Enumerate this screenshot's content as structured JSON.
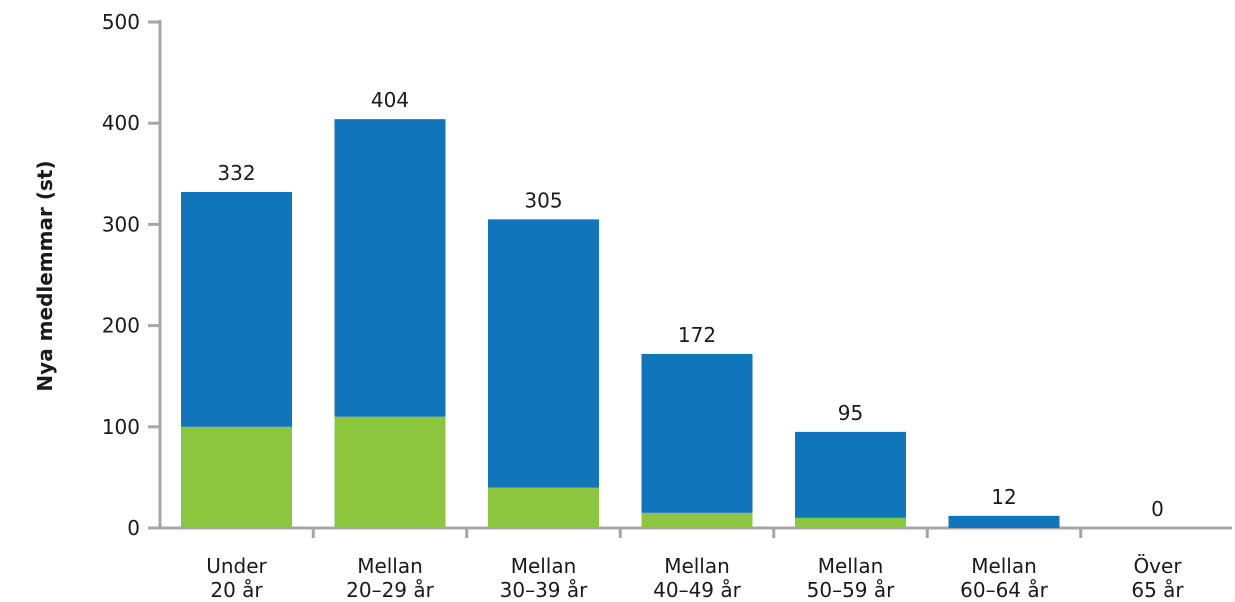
{
  "chart_data": {
    "type": "bar",
    "stacked": true,
    "title": "",
    "xlabel": "",
    "ylabel": "Nya medlemmar (st)",
    "ylim": [
      0,
      500
    ],
    "yticks": [
      0,
      100,
      200,
      300,
      400,
      500
    ],
    "grid": false,
    "categories": [
      [
        "Under",
        "20 år"
      ],
      [
        "Mellan",
        "20–29 år"
      ],
      [
        "Mellan",
        "30–39 år"
      ],
      [
        "Mellan",
        "40–49 år"
      ],
      [
        "Mellan",
        "50–59 år"
      ],
      [
        "Mellan",
        "60–64 år"
      ],
      [
        "Över",
        "65 år"
      ]
    ],
    "totals": [
      332,
      404,
      305,
      172,
      95,
      12,
      0
    ],
    "series": [
      {
        "values": [
          100,
          110,
          40,
          15,
          10,
          0,
          0
        ],
        "color": "#8cc63f"
      },
      {
        "values": [
          232,
          294,
          265,
          157,
          85,
          12,
          0
        ],
        "color": "#1175bc"
      }
    ],
    "axis_color": "#a6a6a6"
  }
}
